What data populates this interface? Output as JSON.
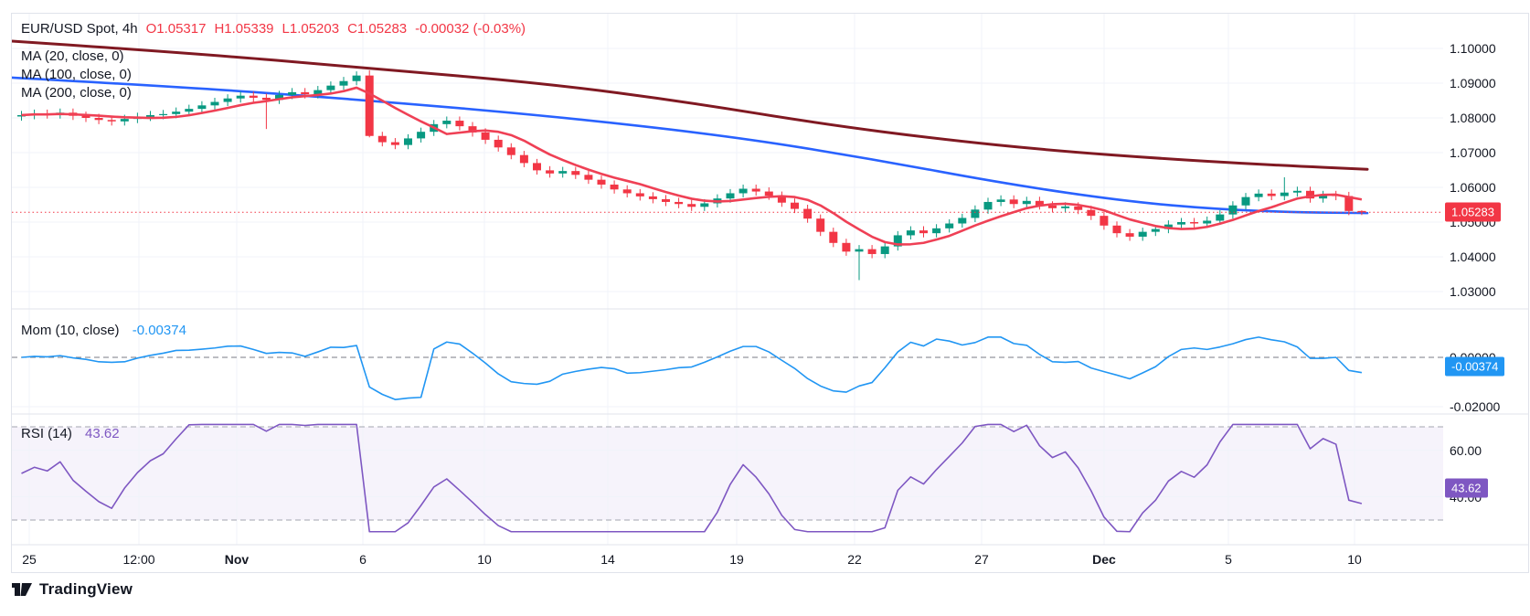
{
  "header": {
    "symbol_title": "EUR/USD Spot, 4h",
    "ohlc": {
      "open": "O1.05317",
      "high": "H1.05339",
      "low": "L1.05203",
      "close": "C1.05283",
      "change": "-0.00032 (-0.03%)"
    },
    "ma_labels": [
      "MA (20, close, 0)",
      "MA (100, close, 0)",
      "MA (200, close, 0)"
    ]
  },
  "panes": {
    "momentum": {
      "label": "Mom (10, close)",
      "value": "-0.00374"
    },
    "rsi": {
      "label": "RSI (14)",
      "value": "43.62"
    }
  },
  "badges": {
    "price": "1.05283",
    "mom": "-0.00374",
    "rsi": "43.62"
  },
  "price_axis": {
    "labels": [
      "1.10000",
      "1.09000",
      "1.08000",
      "1.07000",
      "1.06000",
      "1.05000",
      "1.04000",
      "1.03000"
    ]
  },
  "time_axis": {
    "labels": [
      {
        "t": "25",
        "x": 31
      },
      {
        "t": "12:00",
        "x": 151
      },
      {
        "t": "Nov",
        "x": 258,
        "b": 1
      },
      {
        "t": "6",
        "x": 396
      },
      {
        "t": "10",
        "x": 529
      },
      {
        "t": "14",
        "x": 664
      },
      {
        "t": "19",
        "x": 805
      },
      {
        "t": "22",
        "x": 934
      },
      {
        "t": "27",
        "x": 1073
      },
      {
        "t": "Dec",
        "x": 1207,
        "b": 1
      },
      {
        "t": "5",
        "x": 1343
      },
      {
        "t": "10",
        "x": 1481
      }
    ]
  },
  "brand": {
    "name": "TradingView"
  },
  "colors": {
    "background": "#ffffff",
    "grid": "#f0f3fa",
    "border": "#e0e3eb",
    "up": "#089981",
    "down": "#f23645",
    "ma20": "#ef4055",
    "ma100": "#2962ff",
    "ma200": "#801922",
    "momentum": "#2196f3",
    "rsi": "#7e57c2",
    "rsi_band_fill": "rgba(126,87,194,0.07)",
    "dashed_band": "#a3a6af",
    "dashed_zero": "#787b86",
    "text": "#131722"
  },
  "chart_data": {
    "type": "candlestick",
    "symbol": "EUR/USD Spot",
    "interval": "4h",
    "last_candle": {
      "open": 1.05317,
      "high": 1.05339,
      "low": 1.05203,
      "close": 1.05283,
      "change": -0.00032,
      "change_pct": -0.03
    },
    "price_line": 1.05283,
    "badge_values": {
      "price": 1.05283,
      "mom": -0.00374,
      "rsi": 43.62
    },
    "ylim": [
      1.03,
      1.1
    ],
    "x_start": 18,
    "x_step": 14.1,
    "first_open": 1.0804,
    "closes": [
      1.0808,
      1.0812,
      1.081,
      1.0815,
      1.0806,
      1.08,
      1.0794,
      1.079,
      1.0797,
      1.0803,
      1.0808,
      1.0811,
      1.0818,
      1.0826,
      1.0836,
      1.0846,
      1.0856,
      1.0864,
      1.0858,
      1.0852,
      1.0866,
      1.0874,
      1.0868,
      1.088,
      1.0893,
      1.0906,
      1.0922,
      1.0748,
      1.073,
      1.0722,
      1.0741,
      1.076,
      1.0782,
      1.0792,
      1.0776,
      1.0758,
      1.0737,
      1.0715,
      1.0693,
      1.067,
      1.0649,
      1.064,
      1.0647,
      1.0636,
      1.0622,
      1.0608,
      1.0594,
      1.0583,
      1.0574,
      1.0566,
      1.0558,
      1.0552,
      1.0544,
      1.0554,
      1.0568,
      1.0583,
      1.0596,
      1.0588,
      1.0576,
      1.0556,
      1.0538,
      1.051,
      1.0472,
      1.044,
      1.0415,
      1.0422,
      1.0408,
      1.043,
      1.0462,
      1.0476,
      1.0468,
      1.0482,
      1.0496,
      1.0512,
      1.0536,
      1.0558,
      1.0565,
      1.0552,
      1.0561,
      1.0548,
      1.054,
      1.0545,
      1.0535,
      1.0518,
      1.049,
      1.0468,
      1.0458,
      1.0472,
      1.048,
      1.0493,
      1.05,
      1.0496,
      1.0504,
      1.0522,
      1.0548,
      1.0572,
      1.0582,
      1.0575,
      1.0585,
      1.059,
      1.0568,
      1.0578,
      1.0575,
      1.0532,
      1.05283
    ],
    "default_wick": 0.0012,
    "wick_overrides": {
      "19": {
        "low": 1.0768
      },
      "27": {
        "high": 1.0937,
        "low": 1.0744
      },
      "65": {
        "low": 1.0333
      },
      "98": {
        "high": 1.0629
      },
      "104": {
        "high": 1.05339,
        "low": 1.05203
      }
    },
    "ma20": {
      "period": 20,
      "window_points": 7
    },
    "ma100_points": [
      [
        12,
        1.0916
      ],
      [
        200,
        1.0889
      ],
      [
        400,
        1.0851
      ],
      [
        600,
        1.0806
      ],
      [
        800,
        1.0747
      ],
      [
        950,
        1.0683
      ],
      [
        1100,
        1.061
      ],
      [
        1230,
        1.056
      ],
      [
        1330,
        1.0537
      ],
      [
        1420,
        1.0528
      ],
      [
        1495,
        1.0526
      ]
    ],
    "ma200_points": [
      [
        12,
        1.1021
      ],
      [
        200,
        1.0988
      ],
      [
        400,
        1.0944
      ],
      [
        600,
        1.0898
      ],
      [
        750,
        1.0846
      ],
      [
        900,
        1.0782
      ],
      [
        1030,
        1.0738
      ],
      [
        1150,
        1.0706
      ],
      [
        1280,
        1.0681
      ],
      [
        1400,
        1.0663
      ],
      [
        1495,
        1.0652
      ]
    ],
    "momentum": {
      "period": 10,
      "points_back": 5,
      "last": -0.00374,
      "levels": [
        "0.00000",
        "-0.02000"
      ],
      "clamp": [
        -0.0194,
        0.0082
      ]
    },
    "rsi": {
      "period": 14,
      "last": 43.62,
      "upper_band": 70,
      "lower_band": 30,
      "levels": [
        "60.00",
        "40.00"
      ],
      "clamp": [
        25,
        71
      ]
    }
  }
}
